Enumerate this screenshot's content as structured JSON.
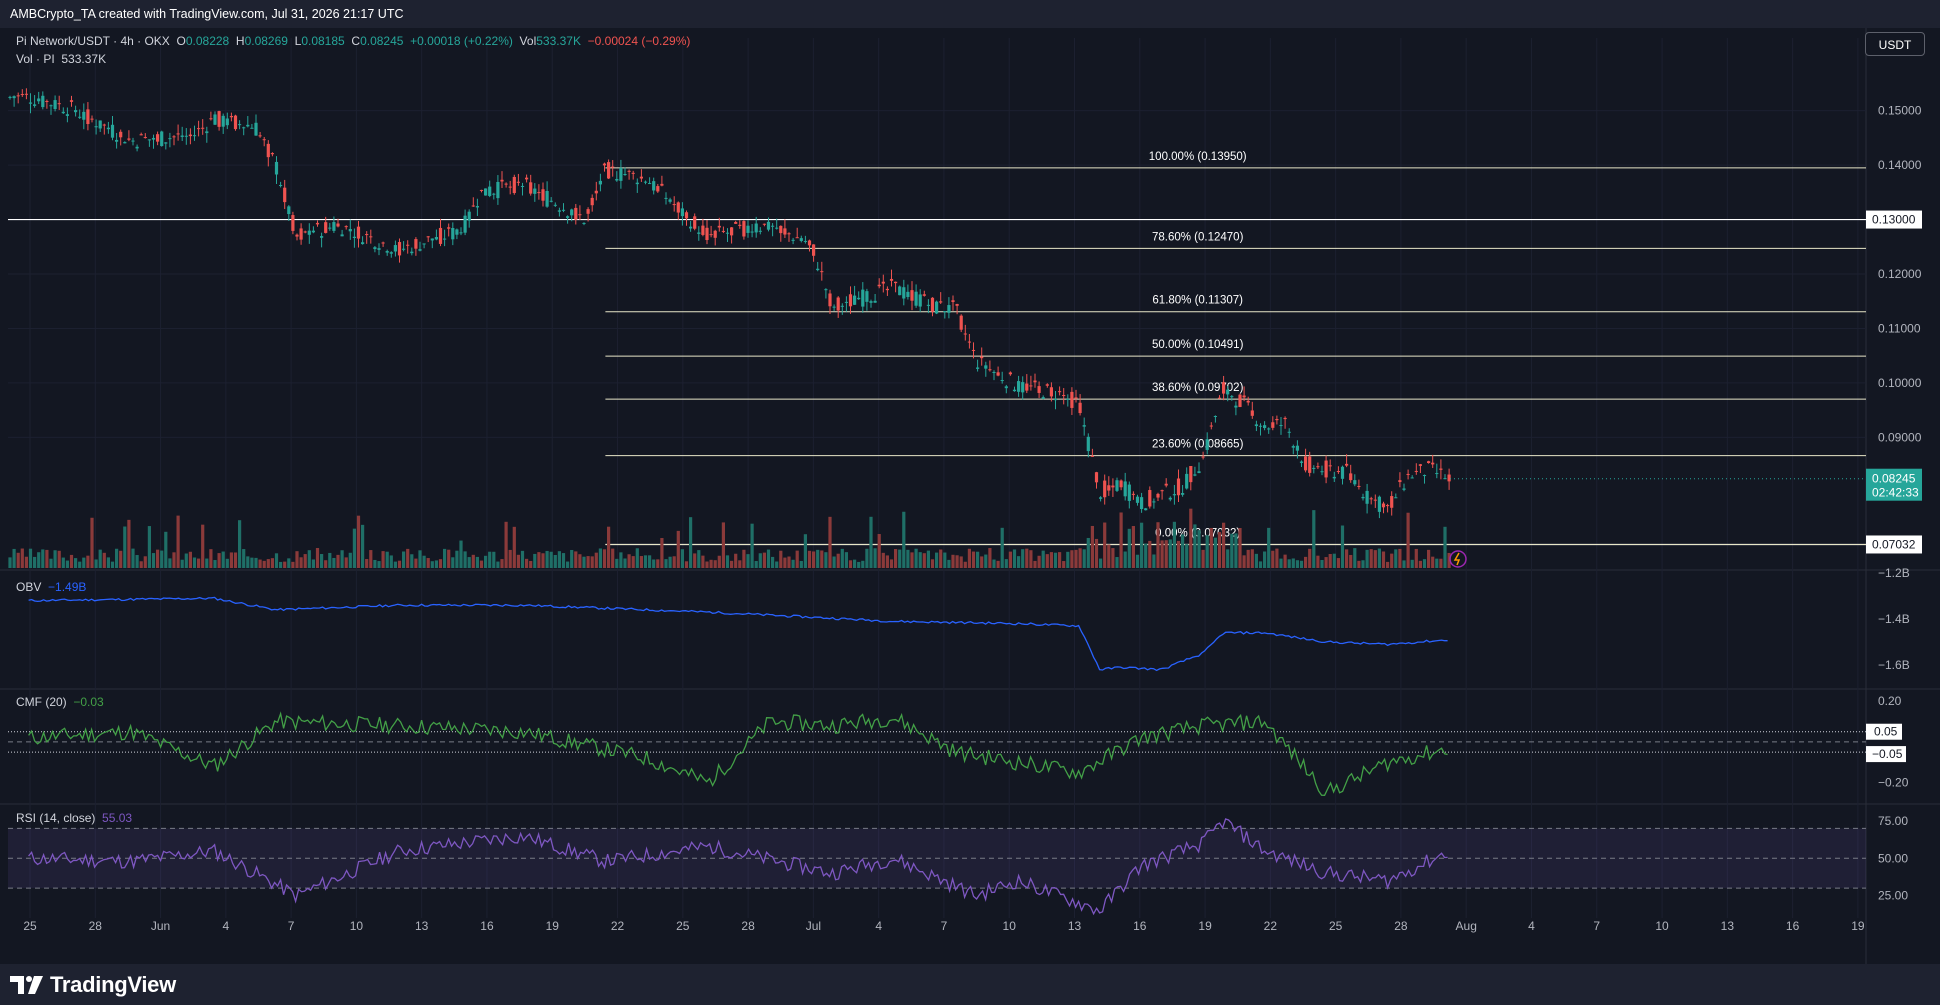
{
  "header": {
    "credit": "AMBCrypto_TA created with TradingView.com, Jul 31, 2026 21:17 UTC"
  },
  "symbol": {
    "name": "Pi Network/USDT · 4h · OKX",
    "o_label": "O",
    "o": "0.08228",
    "h_label": "H",
    "h": "0.08269",
    "l_label": "L",
    "l": "0.08185",
    "c_label": "C",
    "c": "0.08245",
    "change": "+0.00018 (+0.22%)",
    "vol_label": "Vol",
    "vol": "533.37K",
    "vol_change": "−0.00024 (−0.29%)",
    "vol_pi_label": "Vol · PI",
    "vol_pi": "533.37K"
  },
  "currency_button": "USDT",
  "price_axis": {
    "ticks": [
      "0.15000",
      "0.14000",
      "0.12000",
      "0.11000",
      "0.10000",
      "0.09000"
    ],
    "tick_values": [
      0.15,
      0.14,
      0.12,
      0.11,
      0.1,
      0.09
    ],
    "hline_labels": [
      {
        "text": "0.13000",
        "value": 0.13
      },
      {
        "text": "0.07032",
        "value": 0.07032
      }
    ],
    "current_price": "0.08245",
    "countdown": "02:42:33"
  },
  "fib_levels": [
    {
      "label": "100.00% (0.13950)",
      "value": 0.1395
    },
    {
      "label": "78.60% (0.12470)",
      "value": 0.1247
    },
    {
      "label": "61.80% (0.11307)",
      "value": 0.11307
    },
    {
      "label": "50.00% (0.10491)",
      "value": 0.10491
    },
    {
      "label": "38.60% (0.09702)",
      "value": 0.09702
    },
    {
      "label": "23.60% (0.08665)",
      "value": 0.08665
    },
    {
      "label": "0.00% (0.07032)",
      "value": 0.07032
    }
  ],
  "obv": {
    "label": "OBV",
    "value": "−1.49B",
    "ticks": [
      "−1.2B",
      "−1.4B",
      "−1.6B"
    ]
  },
  "cmf": {
    "label": "CMF (20)",
    "value": "−0.03",
    "ticks": [
      "0.20",
      "−0.20"
    ],
    "markers": [
      "0.05",
      "−0.05"
    ]
  },
  "rsi": {
    "label": "RSI (14, close)",
    "value": "55.03",
    "ticks": [
      "75.00",
      "50.00",
      "25.00"
    ]
  },
  "time_axis": [
    "25",
    "28",
    "Jun",
    "4",
    "7",
    "10",
    "13",
    "16",
    "19",
    "22",
    "25",
    "28",
    "Jul",
    "4",
    "7",
    "10",
    "13",
    "16",
    "19",
    "22",
    "25",
    "28",
    "Aug",
    "4",
    "7",
    "10",
    "13",
    "16",
    "19"
  ],
  "footer": {
    "brand": "TradingView"
  },
  "colors": {
    "up": "#26a69a",
    "down": "#ef5350",
    "obv": "#2962ff",
    "cmf": "#43a047",
    "rsi": "#7e57c2",
    "bg": "#131722"
  },
  "chart_data": [
    {
      "type": "line",
      "title": "Pi Network/USDT · 4h · OKX",
      "y_scale": "price",
      "x": [
        "May 23",
        "May 25",
        "May 28",
        "May 31",
        "Jun 1",
        "Jun 3",
        "Jun 4",
        "Jun 5",
        "Jun 7",
        "Jun 10",
        "Jun 13",
        "Jun 14",
        "Jun 16",
        "Jun 19",
        "Jun 20",
        "Jun 22",
        "Jun 25",
        "Jun 28",
        "Jun 30",
        "Jul 1",
        "Jul 4",
        "Jul 6",
        "Jul 7",
        "Jul 8",
        "Jul 10",
        "Jul 12",
        "Jul 13",
        "Jul 14",
        "Jul 15",
        "Jul 16",
        "Jul 18",
        "Jul 19",
        "Jul 20",
        "Jul 21",
        "Jul 22",
        "Jul 23",
        "Jul 24",
        "Jul 25",
        "Jul 26",
        "Jul 27",
        "Jul 28",
        "Jul 29",
        "Jul 30",
        "Jul 31"
      ],
      "values": [
        0.1525,
        0.1505,
        0.1445,
        0.1455,
        0.1485,
        0.147,
        0.14,
        0.127,
        0.129,
        0.1245,
        0.128,
        0.135,
        0.1365,
        0.13,
        0.139,
        0.1375,
        0.127,
        0.129,
        0.1255,
        0.114,
        0.1175,
        0.114,
        0.1135,
        0.104,
        0.0995,
        0.098,
        0.096,
        0.08,
        0.0815,
        0.078,
        0.081,
        0.086,
        0.099,
        0.096,
        0.092,
        0.0925,
        0.085,
        0.084,
        0.0835,
        0.079,
        0.077,
        0.083,
        0.084,
        0.0824
      ],
      "ylim": [
        0.066,
        0.156
      ]
    },
    {
      "type": "line",
      "title": "OBV",
      "x": [
        "May 23",
        "Jun 1",
        "Jun 4",
        "Jun 10",
        "Jun 16",
        "Jun 25",
        "Jul 4",
        "Jul 10",
        "Jul 13",
        "Jul 14",
        "Jul 15",
        "Jul 17",
        "Jul 19",
        "Jul 20",
        "Jul 22",
        "Jul 25",
        "Jul 28",
        "Jul 31"
      ],
      "values": [
        -1.32,
        -1.31,
        -1.36,
        -1.34,
        -1.34,
        -1.37,
        -1.41,
        -1.42,
        -1.43,
        -1.62,
        -1.61,
        -1.62,
        -1.55,
        -1.46,
        -1.46,
        -1.5,
        -1.51,
        -1.49
      ],
      "ylim": [
        -1.7,
        -1.2
      ]
    },
    {
      "type": "line",
      "title": "CMF (20)",
      "x": [
        "May 23",
        "May 28",
        "Jun 1",
        "Jun 4",
        "Jun 10",
        "Jun 16",
        "Jun 22",
        "Jun 25",
        "Jun 28",
        "Jul 1",
        "Jul 4",
        "Jul 7",
        "Jul 10",
        "Jul 13",
        "Jul 16",
        "Jul 19",
        "Jul 22",
        "Jul 25",
        "Jul 28",
        "Jul 31"
      ],
      "values": [
        0.02,
        0.05,
        -0.12,
        0.1,
        0.08,
        0.05,
        -0.08,
        -0.2,
        0.1,
        0.08,
        0.12,
        -0.05,
        -0.1,
        -0.15,
        0.02,
        0.08,
        0.1,
        -0.25,
        -0.1,
        -0.03
      ],
      "ylim": [
        -0.3,
        0.25
      ]
    },
    {
      "type": "line",
      "title": "RSI (14, close)",
      "x": [
        "May 23",
        "May 28",
        "Jun 1",
        "Jun 5",
        "Jun 10",
        "Jun 16",
        "Jun 20",
        "Jun 25",
        "Jul 1",
        "Jul 4",
        "Jul 8",
        "Jul 10",
        "Jul 14",
        "Jul 16",
        "Jul 19",
        "Jul 20",
        "Jul 22",
        "Jul 25",
        "Jul 28",
        "Jul 31"
      ],
      "values": [
        50,
        48,
        55,
        25,
        55,
        65,
        48,
        58,
        40,
        50,
        25,
        35,
        15,
        45,
        60,
        75,
        55,
        40,
        35,
        55
      ],
      "ylim": [
        10,
        85
      ]
    }
  ]
}
